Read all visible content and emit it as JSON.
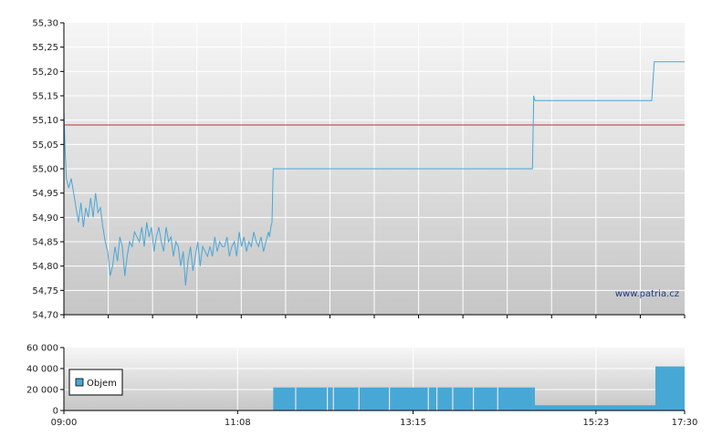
{
  "watermark": "www.patria.cz",
  "colors": {
    "price_line": "#4aa6d6",
    "volume_fill": "#47a8d6",
    "reference_line": "#c0303a",
    "plot_bg_top": "#f6f6f6",
    "plot_bg_bottom": "#c6c6c6",
    "grid": "#ffffff",
    "axis": "#000000"
  },
  "chart_data": [
    {
      "type": "line",
      "title": "",
      "xlabel": "",
      "ylabel": "",
      "x_unit": "time",
      "xlim": [
        "09:00",
        "17:30"
      ],
      "ylim": [
        54.7,
        55.3
      ],
      "y_ticks": [
        "55,30",
        "55,25",
        "55,20",
        "55,15",
        "55,10",
        "55,05",
        "55,00",
        "54,95",
        "54,90",
        "54,85",
        "54,80",
        "54,75",
        "54,70"
      ],
      "grid": true,
      "reference_line": {
        "y": 55.09
      },
      "series": [
        {
          "x": [
            "09:00",
            "09:01",
            "09:02",
            "09:04",
            "09:06",
            "09:08",
            "09:10",
            "09:12",
            "09:14",
            "09:16",
            "09:18",
            "09:20",
            "09:22",
            "09:24",
            "09:26",
            "09:28",
            "09:30",
            "09:32",
            "09:34",
            "09:36",
            "09:38",
            "09:40",
            "09:42",
            "09:44",
            "09:46",
            "09:48",
            "09:50",
            "09:52",
            "09:54",
            "09:56",
            "09:58",
            "10:00",
            "10:02",
            "10:04",
            "10:06",
            "10:08",
            "10:10",
            "10:12",
            "10:14",
            "10:16",
            "10:18",
            "10:20",
            "10:22",
            "10:24",
            "10:26",
            "10:28",
            "10:30",
            "10:32",
            "10:34",
            "10:36",
            "10:38",
            "10:40",
            "10:42",
            "10:44",
            "10:46",
            "10:48",
            "10:50",
            "10:52",
            "10:54",
            "10:56",
            "10:58",
            "11:00",
            "11:02",
            "11:04",
            "11:06",
            "11:08",
            "11:10",
            "11:12",
            "11:14",
            "11:16",
            "11:18",
            "11:20",
            "11:22",
            "11:24",
            "11:26",
            "11:28",
            "11:30",
            "11:32",
            "11:34",
            "11:36",
            "11:38",
            "11:40",
            "11:42",
            "11:44",
            "11:46",
            "11:48",
            "11:49",
            "11:50",
            "11:51",
            "11:52",
            "15:25",
            "15:26",
            "15:27",
            "17:03",
            "17:05",
            "17:30"
          ],
          "y": [
            55.12,
            55.04,
            54.98,
            54.96,
            54.98,
            54.95,
            54.92,
            54.89,
            54.93,
            54.88,
            54.92,
            54.9,
            54.94,
            54.9,
            54.95,
            54.91,
            54.92,
            54.88,
            54.85,
            54.83,
            54.78,
            54.8,
            54.84,
            54.81,
            54.86,
            54.84,
            54.78,
            54.82,
            54.85,
            54.84,
            54.87,
            54.86,
            54.85,
            54.88,
            54.84,
            54.89,
            54.86,
            54.88,
            54.83,
            54.86,
            54.88,
            54.85,
            54.83,
            54.88,
            54.85,
            54.86,
            54.82,
            54.85,
            54.84,
            54.8,
            54.83,
            54.76,
            54.81,
            54.84,
            54.79,
            54.82,
            54.85,
            54.8,
            54.84,
            54.83,
            54.82,
            54.84,
            54.82,
            54.86,
            54.83,
            54.85,
            54.84,
            54.84,
            54.86,
            54.82,
            54.84,
            54.85,
            54.82,
            54.87,
            54.84,
            54.86,
            54.83,
            54.85,
            54.84,
            54.87,
            54.85,
            54.84,
            54.86,
            54.83,
            54.85,
            54.87,
            54.86,
            54.88,
            54.89,
            55.0,
            55.0,
            55.15,
            55.14,
            55.14,
            55.22,
            55.22
          ]
        }
      ]
    },
    {
      "type": "bar",
      "title": "",
      "xlabel": "",
      "ylabel": "",
      "xlim": [
        "09:00",
        "17:30"
      ],
      "ylim": [
        0,
        60000
      ],
      "y_ticks": [
        "60 000",
        "40 000",
        "20 000",
        "0"
      ],
      "x_ticks": [
        "09:00",
        "11:08",
        "13:15",
        "15:23",
        "17:30"
      ],
      "grid": true,
      "legend_position": "left",
      "series": [
        {
          "name": "Objem",
          "x": [
            "11:52",
            "15:25",
            "15:27",
            "17:03",
            "17:06"
          ],
          "x_end": [
            "15:25",
            "15:27",
            "17:03",
            "17:06",
            "17:30"
          ],
          "values": [
            22000,
            22000,
            5000,
            5000,
            42000
          ]
        }
      ],
      "gaps": [
        "12:10",
        "12:36",
        "12:41",
        "13:02",
        "13:27",
        "13:59",
        "14:06",
        "14:19",
        "14:36",
        "14:56"
      ]
    }
  ]
}
